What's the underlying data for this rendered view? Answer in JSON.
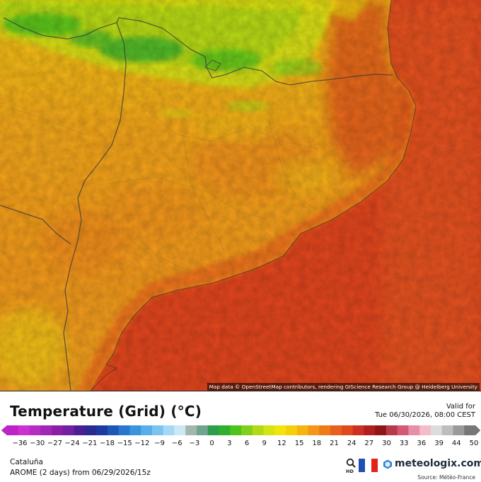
{
  "map": {
    "attribution": "Map data © OpenStreetMap contributors, rendering GIScience Research Group @ Heidelberg University"
  },
  "legend": {
    "title": "Temperature (Grid) (°C)",
    "valid_label": "Valid for",
    "valid_time": "Tue 06/30/2026, 08:00 CEST",
    "ticks": [
      "−36",
      "−30",
      "−27",
      "−24",
      "−21",
      "−18",
      "−15",
      "−12",
      "−9",
      "−6",
      "−3",
      "0",
      "3",
      "6",
      "9",
      "12",
      "15",
      "18",
      "21",
      "24",
      "27",
      "30",
      "33",
      "36",
      "39",
      "44",
      "50"
    ],
    "colors": [
      "#c022c8",
      "#c832d0",
      "#b82cc6",
      "#a026b4",
      "#8c1ea6",
      "#7020a0",
      "#4b1e96",
      "#2a2a90",
      "#1c3aa0",
      "#1e56b8",
      "#2a76cc",
      "#3b93de",
      "#58aee8",
      "#7cc3ee",
      "#a6d8f4",
      "#cce8f5",
      "#a5b6b0",
      "#6fa48f",
      "#2f9e4a",
      "#30b02e",
      "#4fc21c",
      "#80cf1a",
      "#b1da14",
      "#d6e312",
      "#f2e40c",
      "#f5cf0a",
      "#f6b410",
      "#f3961a",
      "#ee7a18",
      "#e8601c",
      "#de4a1e",
      "#cc3020",
      "#b11e20",
      "#8e1518",
      "#b83a4a",
      "#d45a74",
      "#e78fa6",
      "#f2bcc9",
      "#dcdcdc",
      "#bdbdbd",
      "#9a9a9a",
      "#777777"
    ],
    "region": "Cataluña",
    "model": "AROME (2 days) from  06/29/2026/15z",
    "brand": "meteologix.com",
    "source": "Source: Météo-France",
    "hd_label": "HD"
  }
}
